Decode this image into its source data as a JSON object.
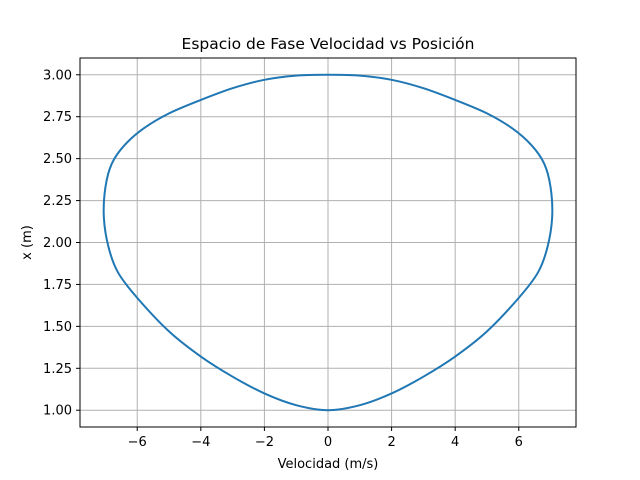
{
  "chart_data": {
    "type": "line",
    "title": "Espacio de Fase Velocidad vs Posición",
    "xlabel": "Velocidad (m/s)",
    "ylabel": "x (m)",
    "xlim": [
      -7.8,
      7.8
    ],
    "ylim": [
      0.9,
      3.1
    ],
    "xticks": [
      -6,
      -4,
      -2,
      0,
      2,
      4,
      6
    ],
    "xtick_labels": [
      "−6",
      "−4",
      "−2",
      "0",
      "2",
      "4",
      "6"
    ],
    "yticks": [
      1.0,
      1.25,
      1.5,
      1.75,
      2.0,
      2.25,
      2.5,
      2.75,
      3.0
    ],
    "ytick_labels": [
      "1.00",
      "1.25",
      "1.50",
      "1.75",
      "2.00",
      "2.25",
      "2.50",
      "2.75",
      "3.00"
    ],
    "grid": true,
    "series": [
      {
        "color": "#1f77b4",
        "x": [
          0.0,
          1.0,
          2.0,
          3.0,
          4.0,
          5.0,
          6.0,
          6.6,
          6.9,
          7.05,
          7.0,
          6.8,
          6.4,
          5.8,
          5.0,
          4.0,
          3.0,
          2.0,
          1.0,
          0.0,
          -1.0,
          -2.0,
          -3.0,
          -4.0,
          -5.0,
          -5.8,
          -6.4,
          -6.8,
          -7.0,
          -7.05,
          -6.9,
          -6.6,
          -6.0,
          -5.0,
          -4.0,
          -3.0,
          -2.0,
          -1.0,
          0.0
        ],
        "y": [
          1.0,
          1.03,
          1.1,
          1.2,
          1.32,
          1.47,
          1.67,
          1.82,
          1.97,
          2.15,
          2.33,
          2.47,
          2.58,
          2.68,
          2.77,
          2.85,
          2.92,
          2.97,
          2.995,
          3.0,
          2.995,
          2.97,
          2.92,
          2.85,
          2.77,
          2.68,
          2.58,
          2.47,
          2.33,
          2.15,
          1.97,
          1.82,
          1.67,
          1.47,
          1.32,
          1.2,
          1.1,
          1.03,
          1.0
        ]
      }
    ]
  }
}
